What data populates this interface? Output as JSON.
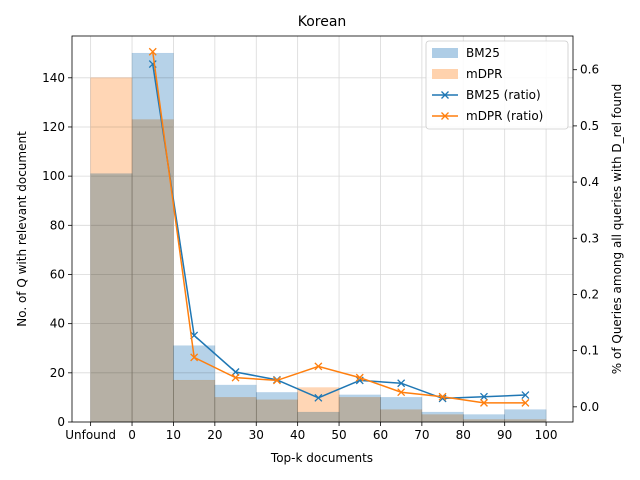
{
  "chart_data": {
    "type": "bar",
    "title": "Korean",
    "xlabel": "Top-k documents",
    "ylabel_left": "No. of Q with relevant document",
    "ylabel_right": "% of Queries among all queries with D_rel found",
    "x_ticks": [
      "Unfound",
      "0",
      "10",
      "20",
      "30",
      "40",
      "50",
      "60",
      "70",
      "80",
      "90",
      "100"
    ],
    "y_left_ticks": [
      "0",
      "20",
      "40",
      "60",
      "80",
      "100",
      "120",
      "140"
    ],
    "y_right_ticks": [
      "0.0",
      "0.1",
      "0.2",
      "0.3",
      "0.4",
      "0.5",
      "0.6"
    ],
    "ylim_left": [
      0,
      157
    ],
    "ylim_right": [
      -0.027,
      0.66
    ],
    "grid": true,
    "legend_position": "upper right",
    "bins": [
      "Unfound",
      "0-10",
      "10-20",
      "20-30",
      "30-40",
      "40-50",
      "50-60",
      "60-70",
      "70-80",
      "80-90",
      "90-100"
    ],
    "bar_series": [
      {
        "name": "BM25",
        "color": "#aecde6",
        "values": [
          101,
          150,
          31,
          15,
          12,
          4,
          11,
          10,
          4,
          3,
          5
        ]
      },
      {
        "name": "mDPR",
        "color": "#ffd2ad",
        "values": [
          140,
          123,
          17,
          10,
          9,
          14,
          10,
          5,
          3,
          1,
          1
        ]
      }
    ],
    "line_x": [
      5,
      15,
      25,
      35,
      45,
      55,
      65,
      75,
      85,
      95
    ],
    "line_series": [
      {
        "name": "BM25 (ratio)",
        "color": "#1f77b4",
        "marker": "x",
        "values": [
          0.61,
          0.127,
          0.062,
          0.048,
          0.016,
          0.047,
          0.042,
          0.015,
          0.018,
          0.021
        ]
      },
      {
        "name": "mDPR (ratio)",
        "color": "#ff7f0e",
        "marker": "x",
        "values": [
          0.632,
          0.088,
          0.052,
          0.047,
          0.072,
          0.052,
          0.026,
          0.018,
          0.007,
          0.007
        ]
      }
    ]
  }
}
